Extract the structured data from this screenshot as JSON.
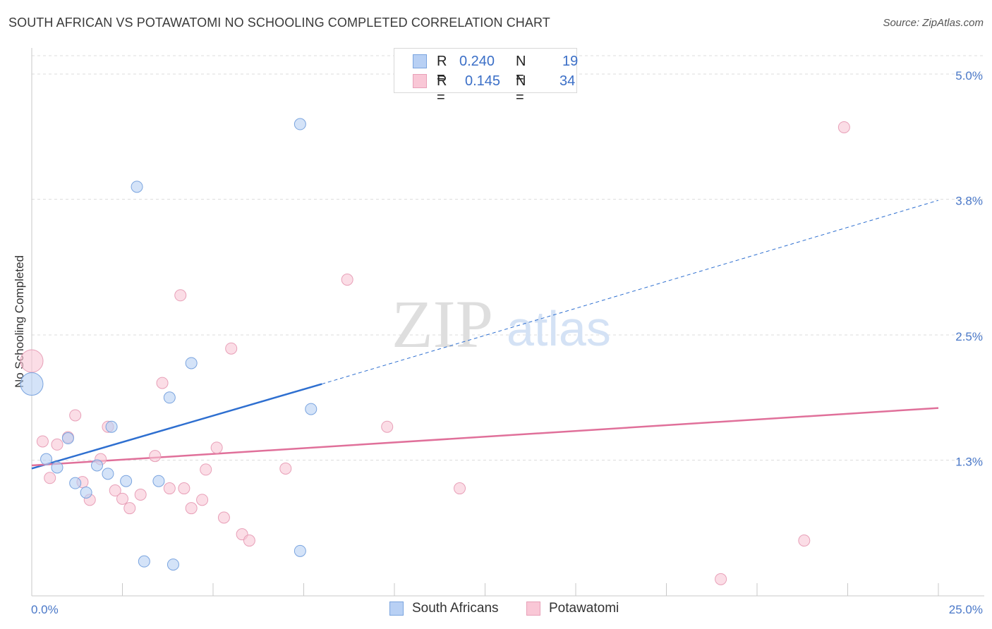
{
  "header": {
    "title": "SOUTH AFRICAN VS POTAWATOMI NO SCHOOLING COMPLETED CORRELATION CHART",
    "source": "Source: ZipAtlas.com"
  },
  "watermark": {
    "zip": "ZIP",
    "atlas": "atlas"
  },
  "legend": {
    "r_label": "R =",
    "n_label": "N =",
    "rows": [
      {
        "name": "South Africans",
        "r": "0.240",
        "n": "19"
      },
      {
        "name": "Potawatomi",
        "r": "0.145",
        "n": "34"
      }
    ]
  },
  "colors": {
    "south_africans_fill": "#b8d0f4",
    "south_africans_stroke": "#7aa4df",
    "south_africans_line": "#2e6fd0",
    "potawatomi_fill": "#f9c7d6",
    "potawatomi_stroke": "#e8a0b8",
    "potawatomi_line": "#e0709a",
    "tick_text": "#4a78c8"
  },
  "chart_data": {
    "type": "scatter",
    "title": "SOUTH AFRICAN VS POTAWATOMI NO SCHOOLING COMPLETED CORRELATION CHART",
    "xlabel": "",
    "ylabel": "No Schooling Completed",
    "xlim": [
      0,
      25
    ],
    "ylim": [
      0,
      5.25
    ],
    "x_tick_labels": [
      {
        "value": 0,
        "label": "0.0%"
      },
      {
        "value": 25,
        "label": "25.0%"
      }
    ],
    "y_tick_labels": [
      {
        "value": 1.3,
        "label": "1.3%"
      },
      {
        "value": 2.5,
        "label": "2.5%"
      },
      {
        "value": 3.8,
        "label": "3.8%"
      },
      {
        "value": 5.0,
        "label": "5.0%"
      }
    ],
    "grid": true,
    "series": [
      {
        "name": "South Africans",
        "points": [
          {
            "x": 0.0,
            "y": 2.03,
            "big": true
          },
          {
            "x": 0.4,
            "y": 1.31
          },
          {
            "x": 0.7,
            "y": 1.23
          },
          {
            "x": 1.0,
            "y": 1.51
          },
          {
            "x": 1.2,
            "y": 1.08
          },
          {
            "x": 1.5,
            "y": 0.99
          },
          {
            "x": 1.8,
            "y": 1.25
          },
          {
            "x": 2.1,
            "y": 1.17
          },
          {
            "x": 2.2,
            "y": 1.62
          },
          {
            "x": 2.6,
            "y": 1.1
          },
          {
            "x": 2.9,
            "y": 3.92
          },
          {
            "x": 3.1,
            "y": 0.33
          },
          {
            "x": 3.5,
            "y": 1.1
          },
          {
            "x": 3.8,
            "y": 1.9
          },
          {
            "x": 3.9,
            "y": 0.3
          },
          {
            "x": 4.4,
            "y": 2.23
          },
          {
            "x": 7.4,
            "y": 4.52
          },
          {
            "x": 7.4,
            "y": 0.43
          },
          {
            "x": 7.7,
            "y": 1.79
          }
        ],
        "trend": {
          "x0": 0,
          "y0": 1.22,
          "x1": 8.0,
          "y1": 2.03,
          "dash_x1": 25,
          "dash_y1": 3.79
        }
      },
      {
        "name": "Potawatomi",
        "points": [
          {
            "x": 0.0,
            "y": 2.25,
            "big": true
          },
          {
            "x": 0.3,
            "y": 1.48
          },
          {
            "x": 0.5,
            "y": 1.13
          },
          {
            "x": 0.7,
            "y": 1.45
          },
          {
            "x": 1.0,
            "y": 1.52
          },
          {
            "x": 1.2,
            "y": 1.73
          },
          {
            "x": 1.4,
            "y": 1.09
          },
          {
            "x": 1.6,
            "y": 0.92
          },
          {
            "x": 1.9,
            "y": 1.31
          },
          {
            "x": 2.1,
            "y": 1.62
          },
          {
            "x": 2.3,
            "y": 1.01
          },
          {
            "x": 2.5,
            "y": 0.93
          },
          {
            "x": 2.7,
            "y": 0.84
          },
          {
            "x": 3.0,
            "y": 0.97
          },
          {
            "x": 3.4,
            "y": 1.34
          },
          {
            "x": 3.6,
            "y": 2.04
          },
          {
            "x": 3.8,
            "y": 1.03
          },
          {
            "x": 4.1,
            "y": 2.88
          },
          {
            "x": 4.2,
            "y": 1.03
          },
          {
            "x": 4.4,
            "y": 0.84
          },
          {
            "x": 4.7,
            "y": 0.92
          },
          {
            "x": 4.8,
            "y": 1.21
          },
          {
            "x": 5.1,
            "y": 1.42
          },
          {
            "x": 5.3,
            "y": 0.75
          },
          {
            "x": 5.5,
            "y": 2.37
          },
          {
            "x": 5.8,
            "y": 0.59
          },
          {
            "x": 6.0,
            "y": 0.53
          },
          {
            "x": 7.0,
            "y": 1.22
          },
          {
            "x": 8.7,
            "y": 3.03
          },
          {
            "x": 9.8,
            "y": 1.62
          },
          {
            "x": 11.8,
            "y": 1.03
          },
          {
            "x": 19.0,
            "y": 0.16
          },
          {
            "x": 21.3,
            "y": 0.53
          },
          {
            "x": 22.4,
            "y": 4.49
          }
        ],
        "trend": {
          "x0": 0,
          "y0": 1.25,
          "x1": 25,
          "y1": 1.8
        }
      }
    ]
  }
}
